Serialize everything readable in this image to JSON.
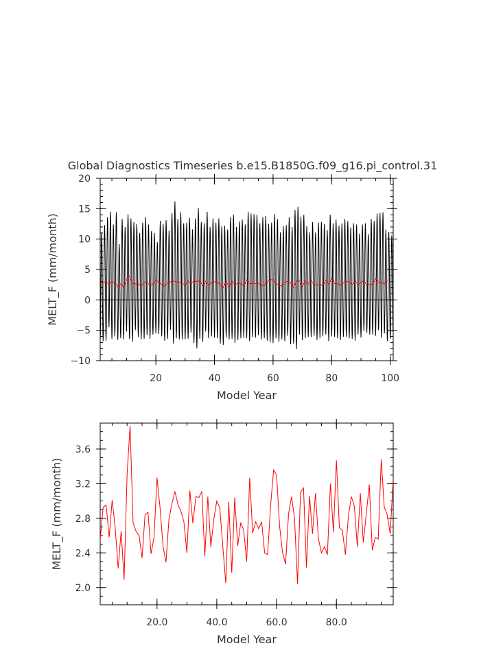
{
  "chart_data": [
    {
      "type": "line",
      "title": "Global Diagnostics Timeseries b.e15.B1850G.f09_g16.pi_control.31",
      "xlabel": "Model Year",
      "ylabel": "MELT_F (mm/month)",
      "xlim": [
        1,
        101
      ],
      "ylim": [
        -10,
        20
      ],
      "xticks": [
        20,
        40,
        60,
        80,
        100
      ],
      "xtick_labels": [
        "20",
        "40",
        "60",
        "80",
        "100"
      ],
      "yticks": [
        -10,
        -5,
        0,
        5,
        10,
        15,
        20
      ],
      "ytick_labels": [
        "−10",
        "−5",
        "0",
        "5",
        "10",
        "15",
        "20"
      ],
      "zero_line": true,
      "series": [
        {
          "color": "#000000",
          "style": "monthly",
          "x_start": 1,
          "step": 0.0833333,
          "cycle_peaks_jul": [
            11.1,
            12.3,
            13.6,
            14.5,
            12.4,
            14.4,
            9.2,
            13.3,
            12.0,
            14.1,
            13.4,
            12.8,
            12.5,
            11.0,
            12.7,
            13.6,
            12.4,
            11.3,
            11.0,
            9.5,
            13.0,
            12.5,
            13.1,
            11.4,
            14.3,
            16.2,
            13.3,
            14.4,
            12.6,
            12.7,
            13.5,
            11.6,
            13.4,
            15.1,
            12.8,
            12.6,
            14.5,
            12.0,
            13.4,
            12.7,
            13.4,
            12.1,
            12.2,
            11.6,
            13.6,
            14.0,
            12.0,
            12.9,
            13.2,
            12.4,
            14.5,
            14.2,
            14.1,
            14.0,
            12.6,
            13.6,
            13.8,
            12.5,
            12.7,
            14.1,
            13.3,
            11.1,
            12.1,
            12.3,
            13.6,
            12.0,
            14.8,
            15.3,
            13.7,
            14.0,
            12.1,
            11.1,
            12.8,
            11.1,
            12.7,
            12.8,
            12.5,
            11.5,
            14.0,
            12.6,
            13.2,
            12.2,
            12.6,
            13.3,
            13.0,
            11.9,
            12.6,
            12.4,
            10.9,
            12.4,
            12.6,
            10.8,
            13.3,
            13.0,
            14.2,
            14.3,
            14.4,
            11.6,
            11.2,
            10.6
          ],
          "cycle_troughs_jan": [
            -6.6,
            -6.8,
            -6.7,
            -4.5,
            -6.4,
            -6.0,
            -6.6,
            -6.3,
            -6.5,
            -5.2,
            -6.4,
            -6.9,
            -5.0,
            -6.1,
            -6.5,
            -6.4,
            -5.8,
            -6.4,
            -5.7,
            -5.5,
            -5.6,
            -6.0,
            -6.7,
            -6.4,
            -4.9,
            -7.2,
            -6.3,
            -6.5,
            -6.5,
            -6.5,
            -6.4,
            -5.4,
            -7.1,
            -8.0,
            -6.4,
            -6.9,
            -5.2,
            -6.3,
            -6.0,
            -6.2,
            -6.3,
            -7.2,
            -7.4,
            -6.2,
            -6.5,
            -6.4,
            -7.1,
            -6.6,
            -6.3,
            -6.2,
            -6.3,
            -6.8,
            -6.1,
            -6.2,
            -5.8,
            -6.5,
            -6.3,
            -6.7,
            -7.0,
            -7.1,
            -6.3,
            -6.9,
            -6.5,
            -6.8,
            -5.9,
            -7.3,
            -7.2,
            -8.1,
            -5.7,
            -6.6,
            -6.3,
            -6.1,
            -6.1,
            -5.9,
            -6.6,
            -6.3,
            -6.0,
            -5.7,
            -6.8,
            -6.0,
            -6.1,
            -6.3,
            -6.6,
            -6.1,
            -6.1,
            -6.3,
            -6.4,
            -6.7,
            -5.7,
            -6.2,
            -5.1,
            -5.4,
            -5.7,
            -5.7,
            -5.9,
            -5.0,
            -6.2,
            -5.5,
            -6.8,
            -6.4
          ]
        },
        {
          "color": "#ff0000",
          "style": "annual",
          "x": [
            1,
            2,
            3,
            4,
            5,
            6,
            7,
            8,
            9,
            10,
            11,
            12,
            13,
            14,
            15,
            16,
            17,
            18,
            19,
            20,
            21,
            22,
            23,
            24,
            25,
            26,
            27,
            28,
            29,
            30,
            31,
            32,
            33,
            34,
            35,
            36,
            37,
            38,
            39,
            40,
            41,
            42,
            43,
            44,
            45,
            46,
            47,
            48,
            49,
            50,
            51,
            52,
            53,
            54,
            55,
            56,
            57,
            58,
            59,
            60,
            61,
            62,
            63,
            64,
            65,
            66,
            67,
            68,
            69,
            70,
            71,
            72,
            73,
            74,
            75,
            76,
            77,
            78,
            79,
            80,
            81,
            82,
            83,
            84,
            85,
            86,
            87,
            88,
            89,
            90,
            91,
            92,
            93,
            94,
            95,
            96,
            97,
            98,
            99
          ],
          "values": [
            2.55,
            2.93,
            2.95,
            2.58,
            3.01,
            2.7,
            2.22,
            2.65,
            2.09,
            3.31,
            3.87,
            2.75,
            2.65,
            2.6,
            2.34,
            2.84,
            2.87,
            2.39,
            2.58,
            3.27,
            2.93,
            2.48,
            2.29,
            2.79,
            2.97,
            3.11,
            2.96,
            2.88,
            2.76,
            2.4,
            3.12,
            2.74,
            3.05,
            3.04,
            3.11,
            2.36,
            3.05,
            2.47,
            2.79,
            3.0,
            2.92,
            2.48,
            2.05,
            2.99,
            2.17,
            3.04,
            2.48,
            2.75,
            2.66,
            2.3,
            3.27,
            2.63,
            2.76,
            2.68,
            2.76,
            2.4,
            2.38,
            2.95,
            3.36,
            3.3,
            2.71,
            2.4,
            2.27,
            2.85,
            3.05,
            2.8,
            2.04,
            3.1,
            3.15,
            2.23,
            3.06,
            2.62,
            3.09,
            2.56,
            2.4,
            2.47,
            2.38,
            3.2,
            2.64,
            3.47,
            2.69,
            2.66,
            2.38,
            2.82,
            3.05,
            2.94,
            2.47,
            3.09,
            2.52,
            2.85,
            3.19,
            2.43,
            2.58,
            2.56,
            3.48,
            2.93,
            2.84,
            2.62,
            3.26
          ]
        }
      ]
    },
    {
      "type": "line",
      "title": "",
      "xlabel": "Model Year",
      "ylabel": "MELT_F (mm/month)",
      "xlim": [
        1,
        99
      ],
      "ylim": [
        1.8,
        3.9
      ],
      "xticks": [
        20,
        40,
        60,
        80
      ],
      "xtick_labels": [
        "20.0",
        "40.0",
        "60.0",
        "80.0"
      ],
      "yticks": [
        2.0,
        2.4,
        2.8,
        3.2,
        3.6
      ],
      "ytick_labels": [
        "2.0",
        "2.4",
        "2.8",
        "3.2",
        "3.6"
      ],
      "series": [
        {
          "color": "#ff0000",
          "x": [
            1,
            2,
            3,
            4,
            5,
            6,
            7,
            8,
            9,
            10,
            11,
            12,
            13,
            14,
            15,
            16,
            17,
            18,
            19,
            20,
            21,
            22,
            23,
            24,
            25,
            26,
            27,
            28,
            29,
            30,
            31,
            32,
            33,
            34,
            35,
            36,
            37,
            38,
            39,
            40,
            41,
            42,
            43,
            44,
            45,
            46,
            47,
            48,
            49,
            50,
            51,
            52,
            53,
            54,
            55,
            56,
            57,
            58,
            59,
            60,
            61,
            62,
            63,
            64,
            65,
            66,
            67,
            68,
            69,
            70,
            71,
            72,
            73,
            74,
            75,
            76,
            77,
            78,
            79,
            80,
            81,
            82,
            83,
            84,
            85,
            86,
            87,
            88,
            89,
            90,
            91,
            92,
            93,
            94,
            95,
            96,
            97,
            98,
            99
          ],
          "values": [
            2.55,
            2.93,
            2.95,
            2.58,
            3.01,
            2.7,
            2.22,
            2.65,
            2.09,
            3.31,
            3.87,
            2.75,
            2.65,
            2.6,
            2.34,
            2.84,
            2.87,
            2.39,
            2.58,
            3.27,
            2.93,
            2.48,
            2.29,
            2.79,
            2.97,
            3.11,
            2.96,
            2.88,
            2.76,
            2.4,
            3.12,
            2.74,
            3.05,
            3.04,
            3.11,
            2.36,
            3.05,
            2.47,
            2.79,
            3.0,
            2.92,
            2.48,
            2.05,
            2.99,
            2.17,
            3.04,
            2.48,
            2.75,
            2.66,
            2.3,
            3.27,
            2.63,
            2.76,
            2.68,
            2.76,
            2.4,
            2.38,
            2.95,
            3.36,
            3.3,
            2.71,
            2.4,
            2.27,
            2.85,
            3.05,
            2.8,
            2.04,
            3.1,
            3.15,
            2.23,
            3.06,
            2.62,
            3.09,
            2.56,
            2.4,
            2.47,
            2.38,
            3.2,
            2.64,
            3.47,
            2.69,
            2.66,
            2.38,
            2.82,
            3.05,
            2.94,
            2.47,
            3.09,
            2.52,
            2.85,
            3.19,
            2.43,
            2.58,
            2.56,
            3.48,
            2.93,
            2.84,
            2.62,
            3.26
          ]
        }
      ]
    }
  ]
}
